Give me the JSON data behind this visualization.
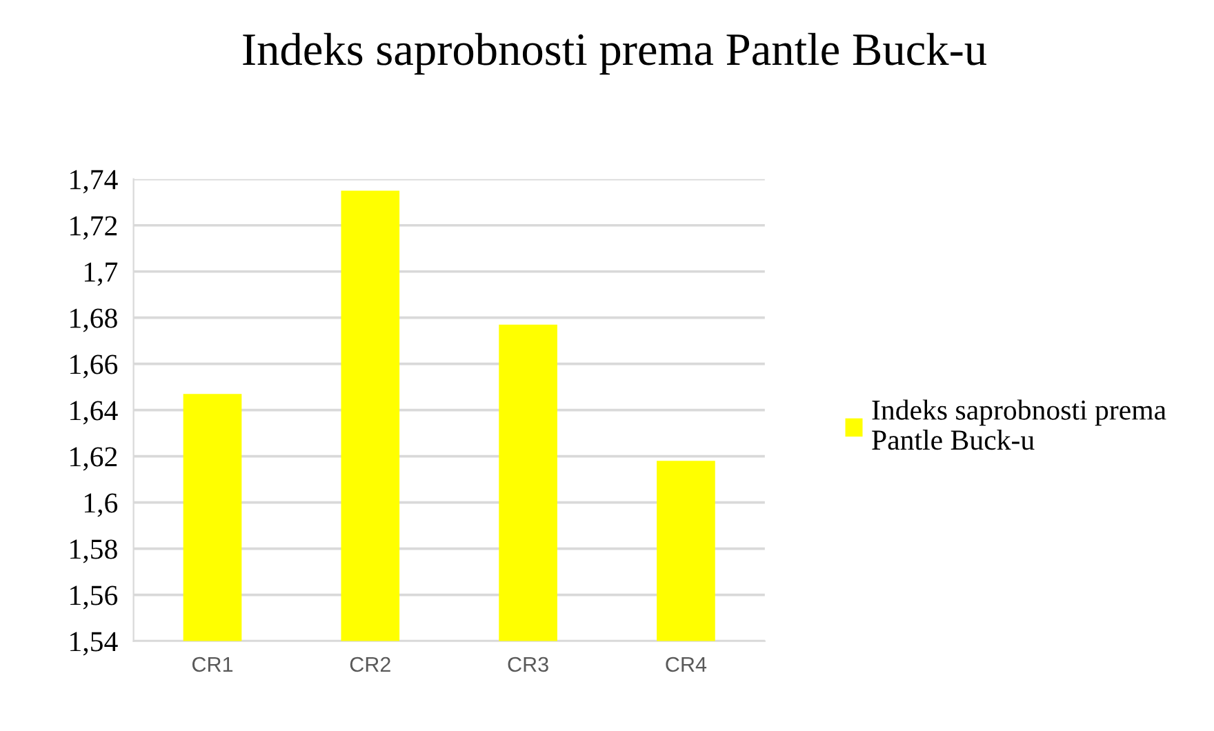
{
  "chart_data": {
    "type": "bar",
    "title": "Indeks saprobnosti prema Pantle Buck-u",
    "categories": [
      "CR1",
      "CR2",
      "CR3",
      "CR4"
    ],
    "series": [
      {
        "name": "Indeks saprobnosti prema Pantle Buck-u",
        "color": "#ffff00",
        "values": [
          1.647,
          1.735,
          1.677,
          1.618
        ]
      }
    ],
    "ylim": [
      1.54,
      1.74
    ],
    "yticks": [
      {
        "value": 1.54,
        "label": "1,54"
      },
      {
        "value": 1.56,
        "label": "1,56"
      },
      {
        "value": 1.58,
        "label": "1,58"
      },
      {
        "value": 1.6,
        "label": "1,6"
      },
      {
        "value": 1.62,
        "label": "1,62"
      },
      {
        "value": 1.64,
        "label": "1,64"
      },
      {
        "value": 1.66,
        "label": "1,66"
      },
      {
        "value": 1.68,
        "label": "1,68"
      },
      {
        "value": 1.7,
        "label": "1,7"
      },
      {
        "value": 1.72,
        "label": "1,72"
      },
      {
        "value": 1.74,
        "label": "1,74"
      }
    ],
    "grid": "y",
    "legend": "right"
  }
}
